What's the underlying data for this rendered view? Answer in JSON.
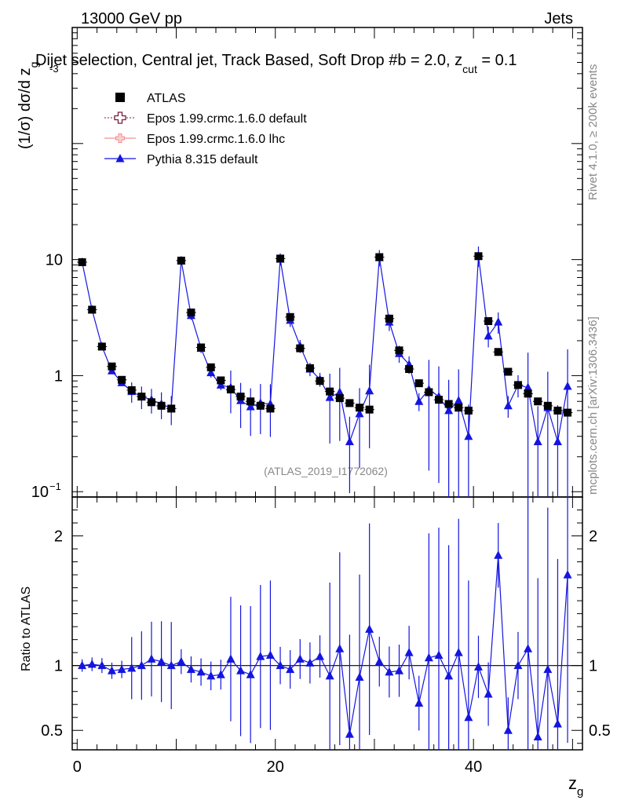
{
  "header": {
    "left": "13000 GeV pp",
    "right": "Jets",
    "title": "Dijet selection, Central jet, Track Based, Soft Drop #b = 2.0, z",
    "title_sub": "cut",
    "title_tail": " = 0.1",
    "title_power": "-3"
  },
  "side": {
    "rivet": "Rivet 4.1.0, ≥ 200k events",
    "mcplots": "mcplots.cern.ch [arXiv:1306.3436]"
  },
  "watermark": "(ATLAS_2019_I1772062)",
  "chart_data": [
    {
      "type": "scatter",
      "name": "main",
      "ylabel": "(1/σ) dσ/d z_g",
      "ylabel_main": "(1/σ) dσ/d z",
      "ylabel_sub": "g",
      "yscale": "log",
      "ylim": [
        0.09,
        1000
      ],
      "xlim": [
        -0.5,
        51
      ],
      "y_ticks": [
        {
          "value": 0.1,
          "label": "10",
          "sup": "−1"
        },
        {
          "value": 1,
          "label": "1",
          "sup": ""
        },
        {
          "value": 10,
          "label": "10",
          "sup": ""
        }
      ],
      "legend": [
        {
          "label": "ATLAS",
          "style": "data"
        },
        {
          "label": "Epos 1.99.crmc.1.6.0 default",
          "style": "cross-dark"
        },
        {
          "label": "Epos 1.99.crmc.1.6.0 lhc",
          "style": "cross-light"
        },
        {
          "label": "Pythia 8.315 default",
          "style": "triangle-blue"
        }
      ],
      "series": [
        {
          "name": "ATLAS",
          "x": [
            0.5,
            1.5,
            2.5,
            3.5,
            4.5,
            5.5,
            6.5,
            7.5,
            8.5,
            9.5,
            10.5,
            11.5,
            12.5,
            13.5,
            14.5,
            15.5,
            16.5,
            17.5,
            18.5,
            19.5,
            20.5,
            21.5,
            22.5,
            23.5,
            24.5,
            25.5,
            26.5,
            27.5,
            28.5,
            29.5,
            30.5,
            31.5,
            32.5,
            33.5,
            34.5,
            35.5,
            36.5,
            37.5,
            38.5,
            39.5,
            40.5,
            41.5,
            42.5,
            43.5,
            44.5,
            45.5,
            46.5,
            47.5,
            48.5,
            49.5
          ],
          "values": [
            9.5,
            3.7,
            1.78,
            1.2,
            0.92,
            0.75,
            0.66,
            0.59,
            0.55,
            0.52,
            9.8,
            3.5,
            1.75,
            1.18,
            0.91,
            0.76,
            0.66,
            0.6,
            0.55,
            0.52,
            10.2,
            3.2,
            1.72,
            1.16,
            0.9,
            0.73,
            0.64,
            0.58,
            0.53,
            0.51,
            10.5,
            3.1,
            1.65,
            1.14,
            0.86,
            0.72,
            0.62,
            0.57,
            0.53,
            0.5,
            10.7,
            2.95,
            1.6,
            1.08,
            0.83,
            0.7,
            0.6,
            0.55,
            0.5,
            0.48
          ]
        },
        {
          "name": "Pythia 8.315 default",
          "x": [
            0.5,
            1.5,
            2.5,
            3.5,
            4.5,
            5.5,
            6.5,
            7.5,
            8.5,
            9.5,
            10.5,
            11.5,
            12.5,
            13.5,
            14.5,
            15.5,
            16.5,
            17.5,
            18.5,
            19.5,
            20.5,
            21.5,
            22.5,
            23.5,
            24.5,
            25.5,
            26.5,
            27.5,
            28.5,
            29.5,
            30.5,
            31.5,
            32.5,
            33.5,
            34.5,
            35.5,
            36.5,
            37.5,
            38.5,
            39.5,
            40.5,
            41.5,
            42.5,
            43.5,
            44.5,
            45.5,
            46.5,
            47.5,
            48.5,
            49.5
          ],
          "values": [
            9.5,
            3.7,
            1.78,
            1.1,
            0.87,
            0.73,
            0.66,
            0.62,
            0.57,
            0.52,
            9.8,
            3.3,
            1.72,
            1.06,
            0.83,
            0.79,
            0.61,
            0.54,
            0.58,
            0.57,
            10.1,
            3.0,
            1.8,
            1.14,
            0.93,
            0.65,
            0.72,
            0.27,
            0.47,
            0.74,
            10.4,
            2.9,
            1.55,
            1.25,
            0.6,
            0.76,
            0.66,
            0.5,
            0.61,
            0.3,
            10.8,
            2.2,
            2.9,
            0.55,
            0.83,
            0.79,
            0.27,
            0.53,
            0.27,
            0.81
          ]
        }
      ]
    },
    {
      "type": "scatter",
      "name": "ratio",
      "ylabel": "Ratio to ATLAS",
      "xlabel": "z_g",
      "xlabel_main": "z",
      "xlabel_sub": "g",
      "ylim": [
        0.35,
        2.3
      ],
      "xlim": [
        -0.5,
        51
      ],
      "y_ticks": [
        {
          "value": 0.5,
          "label": "0.5"
        },
        {
          "value": 1,
          "label": "1"
        },
        {
          "value": 2,
          "label": "2"
        }
      ],
      "x_ticks": [
        {
          "value": 0,
          "label": "0"
        },
        {
          "value": 20,
          "label": "20"
        },
        {
          "value": 40,
          "label": "40"
        }
      ],
      "series": [
        {
          "name": "Pythia 8.315 default",
          "x": [
            0.5,
            1.5,
            2.5,
            3.5,
            4.5,
            5.5,
            6.5,
            7.5,
            8.5,
            9.5,
            10.5,
            11.5,
            12.5,
            13.5,
            14.5,
            15.5,
            16.5,
            17.5,
            18.5,
            19.5,
            20.5,
            21.5,
            22.5,
            23.5,
            24.5,
            25.5,
            26.5,
            27.5,
            28.5,
            29.5,
            30.5,
            31.5,
            32.5,
            33.5,
            34.5,
            35.5,
            36.5,
            37.5,
            38.5,
            39.5,
            40.5,
            41.5,
            42.5,
            43.5,
            44.5,
            45.5,
            46.5,
            47.5,
            48.5,
            49.5
          ],
          "values": [
            1.0,
            1.01,
            1.0,
            0.96,
            0.97,
            0.98,
            1.0,
            1.05,
            1.03,
            1.0,
            1.03,
            0.97,
            0.95,
            0.92,
            0.93,
            1.05,
            0.96,
            0.93,
            1.07,
            1.08,
            1.0,
            0.97,
            1.05,
            1.02,
            1.07,
            0.92,
            1.13,
            0.47,
            0.91,
            1.28,
            1.03,
            0.95,
            0.96,
            1.1,
            0.71,
            1.06,
            1.08,
            0.92,
            1.1,
            0.6,
            0.99,
            0.78,
            1.85,
            0.5,
            1.0,
            1.13,
            0.45,
            0.97,
            0.55,
            1.7
          ]
        }
      ]
    }
  ]
}
